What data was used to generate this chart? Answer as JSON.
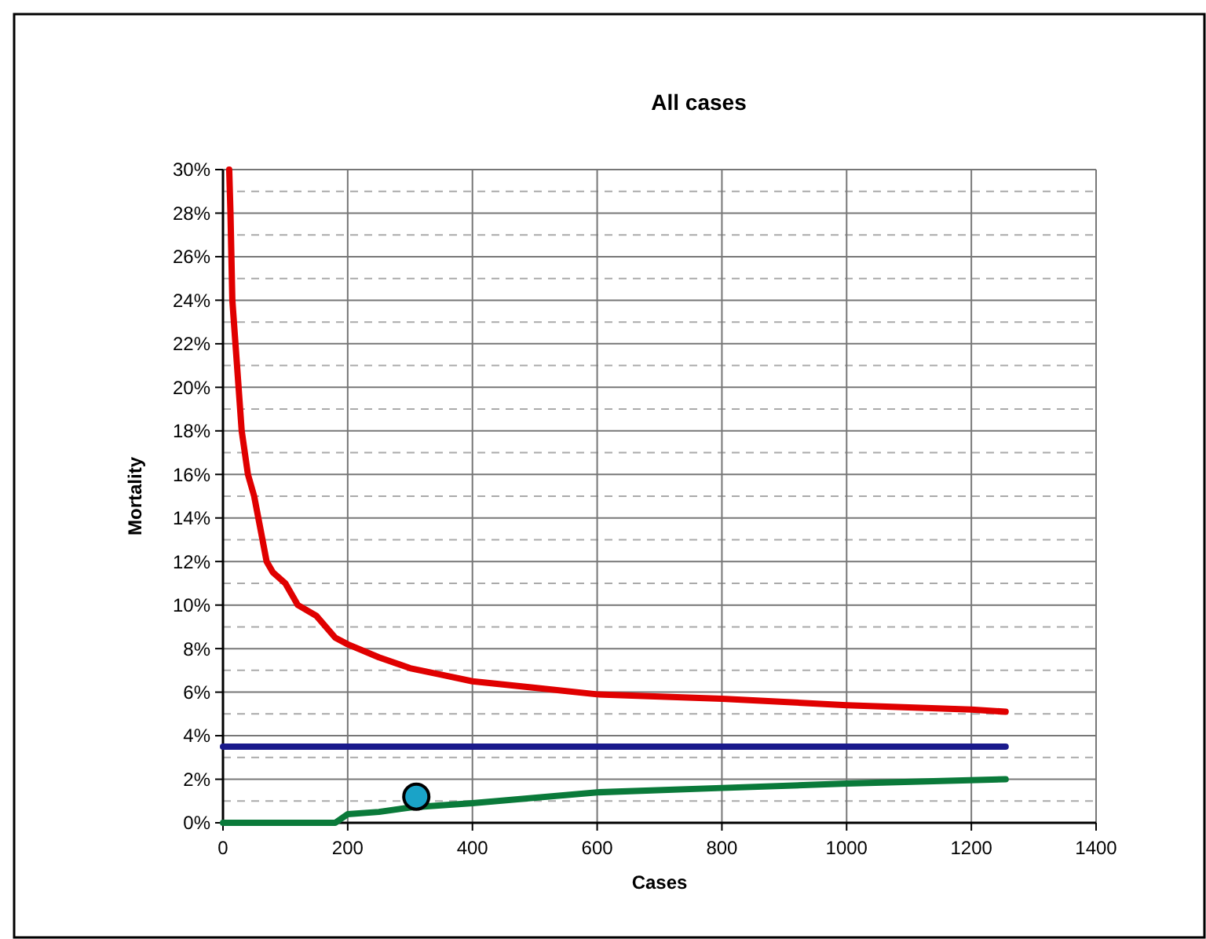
{
  "chart_data": {
    "type": "line",
    "title": "All cases",
    "xlabel": "Cases",
    "ylabel": "Mortality",
    "xlim": [
      0,
      1400
    ],
    "xticks": [
      0,
      200,
      400,
      600,
      800,
      1000,
      1200,
      1400
    ],
    "ylim": [
      0,
      30
    ],
    "yticks": [
      {
        "value": 0,
        "label": "0%"
      },
      {
        "value": 1,
        "label": null
      },
      {
        "value": 2,
        "label": "2%"
      },
      {
        "value": 3,
        "label": null
      },
      {
        "value": 4,
        "label": "4%"
      },
      {
        "value": 5,
        "label": null
      },
      {
        "value": 6,
        "label": "6%"
      },
      {
        "value": 7,
        "label": null
      },
      {
        "value": 8,
        "label": "8%"
      },
      {
        "value": 9,
        "label": null
      },
      {
        "value": 10,
        "label": "10%"
      },
      {
        "value": 11,
        "label": null
      },
      {
        "value": 12,
        "label": "12%"
      },
      {
        "value": 13,
        "label": null
      },
      {
        "value": 14,
        "label": "14%"
      },
      {
        "value": 15,
        "label": null
      },
      {
        "value": 16,
        "label": "16%"
      },
      {
        "value": 17,
        "label": null
      },
      {
        "value": 18,
        "label": "18%"
      },
      {
        "value": 19,
        "label": null
      },
      {
        "value": 20,
        "label": "20%"
      },
      {
        "value": 21,
        "label": null
      },
      {
        "value": 22,
        "label": "22%"
      },
      {
        "value": 23,
        "label": null
      },
      {
        "value": 24,
        "label": "24%"
      },
      {
        "value": 25,
        "label": null
      },
      {
        "value": 26,
        "label": "26%"
      },
      {
        "value": 27,
        "label": null
      },
      {
        "value": 28,
        "label": "28%"
      },
      {
        "value": 29,
        "label": null
      },
      {
        "value": 30,
        "label": "30%"
      }
    ],
    "grid": true,
    "line_style": "solid",
    "series": [
      {
        "color": "#e00000",
        "x": [
          10,
          12,
          15,
          20,
          25,
          30,
          40,
          50,
          60,
          70,
          80,
          100,
          120,
          150,
          180,
          200,
          250,
          300,
          350,
          400,
          500,
          600,
          800,
          1000,
          1200,
          1255
        ],
        "values": [
          30,
          28,
          24,
          22,
          20,
          18,
          16,
          15,
          13.5,
          12,
          11.5,
          11,
          10,
          9.5,
          8.5,
          8.2,
          7.6,
          7.1,
          6.8,
          6.5,
          6.2,
          5.9,
          5.7,
          5.4,
          5.2,
          5.1
        ]
      },
      {
        "color": "#1a1a8c",
        "x": [
          0,
          1255
        ],
        "values": [
          3.5,
          3.5
        ]
      },
      {
        "color": "#0a7a3a",
        "x": [
          0,
          180,
          200,
          250,
          300,
          400,
          600,
          800,
          1000,
          1255
        ],
        "values": [
          0,
          0,
          0.4,
          0.5,
          0.7,
          0.9,
          1.4,
          1.6,
          1.8,
          2.0
        ]
      },
      {
        "type": "scatter",
        "marker": "circle",
        "color": "#1aa3c8",
        "x": [
          310
        ],
        "values": [
          1.2
        ]
      }
    ]
  }
}
